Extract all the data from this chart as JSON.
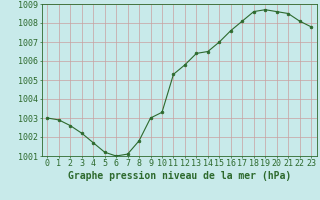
{
  "x": [
    0,
    1,
    2,
    3,
    4,
    5,
    6,
    7,
    8,
    9,
    10,
    11,
    12,
    13,
    14,
    15,
    16,
    17,
    18,
    19,
    20,
    21,
    22,
    23
  ],
  "y": [
    1003.0,
    1002.9,
    1002.6,
    1002.2,
    1001.7,
    1001.2,
    1001.0,
    1001.1,
    1001.8,
    1003.0,
    1003.3,
    1005.3,
    1005.8,
    1006.4,
    1006.5,
    1007.0,
    1007.6,
    1008.1,
    1008.6,
    1008.7,
    1008.6,
    1008.5,
    1008.1,
    1007.8
  ],
  "ylim": [
    1001.0,
    1009.0
  ],
  "yticks": [
    1001,
    1002,
    1003,
    1004,
    1005,
    1006,
    1007,
    1008,
    1009
  ],
  "xlim": [
    -0.5,
    23.5
  ],
  "xticks": [
    0,
    1,
    2,
    3,
    4,
    5,
    6,
    7,
    8,
    9,
    10,
    11,
    12,
    13,
    14,
    15,
    16,
    17,
    18,
    19,
    20,
    21,
    22,
    23
  ],
  "line_color": "#2d6a2d",
  "marker_color": "#2d6a2d",
  "bg_color": "#c8eaea",
  "grid_color_major": "#c8a0a0",
  "grid_color_minor": "#ddc0c0",
  "xlabel": "Graphe pression niveau de la mer (hPa)",
  "xlabel_fontsize": 7,
  "tick_fontsize": 6
}
